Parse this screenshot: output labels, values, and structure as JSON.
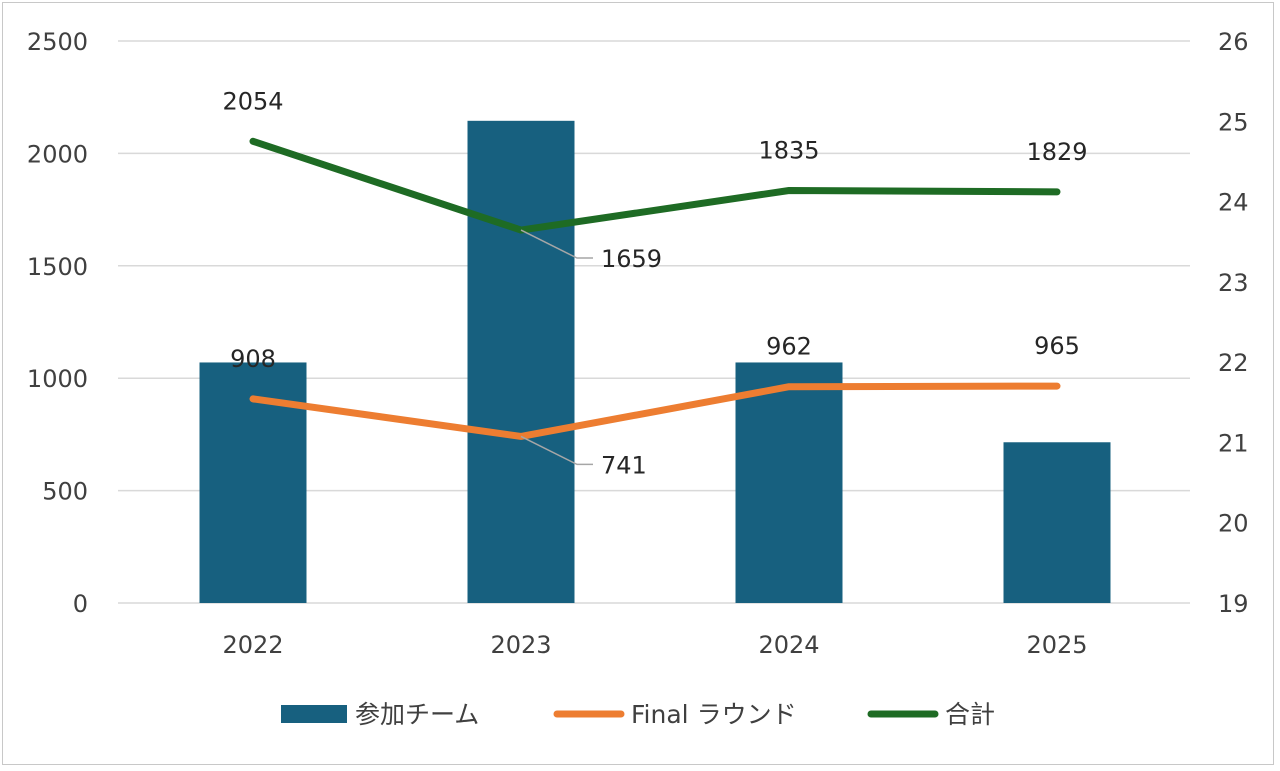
{
  "chart_data": {
    "type": "bar+line",
    "categories": [
      "2022",
      "2023",
      "2024",
      "2025"
    ],
    "bar_series": {
      "name": "参加チーム",
      "values": [
        1070,
        2145,
        1070,
        715
      ],
      "axis": "right",
      "color": "#17607f"
    },
    "line_series": [
      {
        "name": "Final ラウンド",
        "values": [
          908,
          741,
          962,
          965
        ],
        "axis": "left",
        "color": "#ed7d31",
        "labels": [
          "908",
          "741",
          "962",
          "965"
        ]
      },
      {
        "name": "合計",
        "values": [
          2054,
          1659,
          1835,
          1829
        ],
        "axis": "left",
        "color": "#1e6b24",
        "labels": [
          "2054",
          "1659",
          "1835",
          "1829"
        ]
      }
    ],
    "left_axis": {
      "min": 0,
      "max": 2500,
      "ticks": [
        "0",
        "500",
        "1000",
        "1500",
        "2000",
        "2500"
      ]
    },
    "right_axis": {
      "min": 19,
      "max": 26,
      "ticks": [
        "19",
        "20",
        "21",
        "22",
        "23",
        "24",
        "25",
        "26"
      ]
    },
    "grid": true,
    "legend_position": "bottom"
  }
}
